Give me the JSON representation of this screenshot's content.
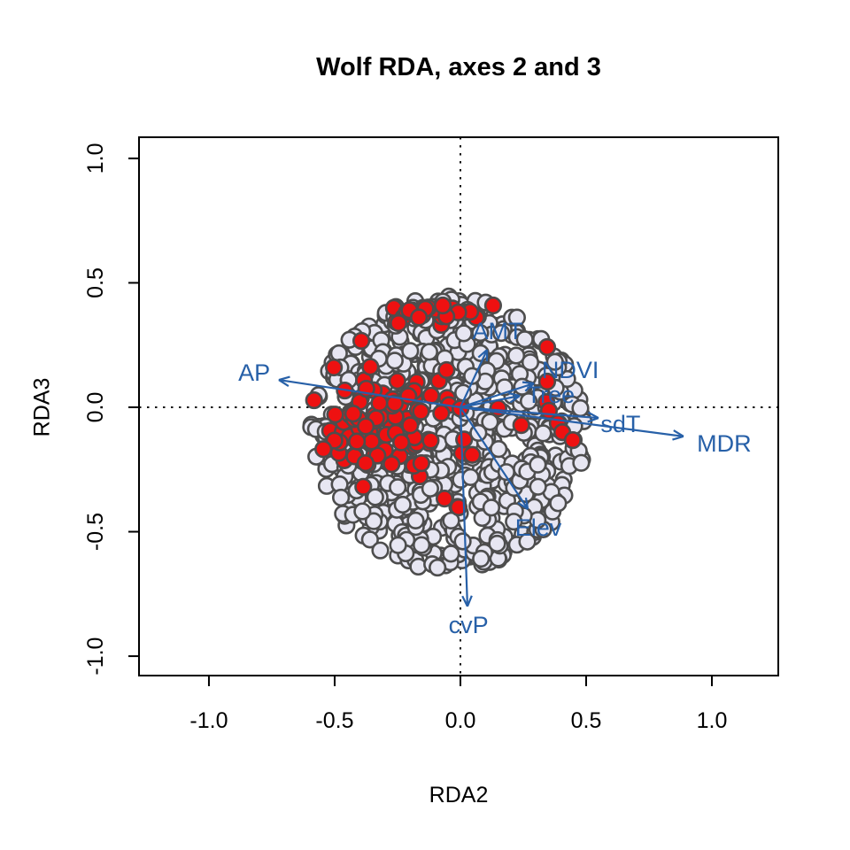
{
  "chart_data": {
    "type": "scatter",
    "subtype": "rda-biplot",
    "title": "Wolf RDA, axes 2 and 3",
    "xlabel": "RDA2",
    "ylabel": "RDA3",
    "xlim": [
      -1.278,
      1.264
    ],
    "ylim": [
      -1.078,
      1.085
    ],
    "x_ticks": [
      -1.0,
      -0.5,
      0.0,
      0.5,
      1.0
    ],
    "y_ticks": [
      -1.0,
      -0.5,
      0.0,
      0.5,
      1.0
    ],
    "x_tick_labels": [
      "-1.0",
      "-0.5",
      "0.0",
      "0.5",
      "1.0"
    ],
    "y_tick_labels": [
      "-1.0",
      "-0.5",
      "0.0",
      "0.5",
      "1.0"
    ],
    "grid": false,
    "legend": "none",
    "zero_reference_lines": {
      "style": "dotted",
      "color": "#111111",
      "at_x": 0,
      "at_y": 0
    },
    "colors": {
      "arrow": "#2760a8",
      "arrow_label": "#2760a8",
      "site_point_fill": "#e7e6f2",
      "highlight_point_fill": "#ee1111",
      "point_stroke": "#4d4d4d",
      "axis": "#000000"
    },
    "arrows": [
      {
        "label": "AP",
        "x": -0.722,
        "y": 0.11,
        "label_x": -0.82,
        "label_y": 0.139
      },
      {
        "label": "AMT",
        "x": 0.106,
        "y": 0.231,
        "label_x": 0.148,
        "label_y": 0.306
      },
      {
        "label": "NDVI",
        "x": 0.292,
        "y": 0.096,
        "label_x": 0.437,
        "label_y": 0.149
      },
      {
        "label": "Tree",
        "x": 0.236,
        "y": 0.046,
        "label_x": 0.359,
        "label_y": 0.05
      },
      {
        "label": "sdT",
        "x": 0.549,
        "y": -0.043,
        "label_x": 0.637,
        "label_y": -0.068
      },
      {
        "label": "MDR",
        "x": 0.887,
        "y": -0.117,
        "label_x": 1.049,
        "label_y": -0.146
      },
      {
        "label": "Elev",
        "x": 0.268,
        "y": -0.409,
        "label_x": 0.31,
        "label_y": -0.484
      },
      {
        "label": "cvP",
        "x": 0.028,
        "y": -0.8,
        "label_x": 0.032,
        "label_y": -0.875
      }
    ],
    "points": {
      "seed": 1337,
      "marker_radius_px": 8.8,
      "marker_stroke_px": 2.6,
      "base_cloud": {
        "n": 800,
        "cx": -0.05,
        "cy": -0.105,
        "rx": 0.545,
        "ry": 0.55
      },
      "red_clusters": [
        {
          "type": "gauss",
          "n": 78,
          "cx": -0.33,
          "cy": -0.09,
          "sx": 0.115,
          "sy": 0.09
        },
        {
          "type": "gauss",
          "n": 14,
          "cx": -0.13,
          "cy": -0.02,
          "sx": 0.1,
          "sy": 0.12
        },
        {
          "type": "band",
          "n": 22,
          "x_min": -0.27,
          "x_max": 0.1,
          "cy": 0.372,
          "sy": 0.018
        },
        {
          "type": "gauss",
          "n": 10,
          "cx": 0.0,
          "cy": -0.15,
          "sx": 0.18,
          "sy": 0.12
        }
      ],
      "red_points": [
        [
          -0.503,
          0.16
        ],
        [
          -0.394,
          0.267
        ],
        [
          0.13,
          0.409
        ],
        [
          -0.07,
          0.409
        ],
        [
          0.345,
          0.242
        ],
        [
          0.345,
          0.103
        ],
        [
          0.342,
          0.021
        ],
        [
          0.352,
          -0.014
        ],
        [
          0.387,
          -0.064
        ],
        [
          0.405,
          -0.1
        ],
        [
          0.447,
          -0.132
        ],
        [
          -0.063,
          -0.367
        ],
        [
          -0.007,
          -0.402
        ],
        [
          0.151,
          -0.004
        ],
        [
          -0.246,
          0.338
        ],
        [
          -0.165,
          0.361
        ]
      ]
    }
  }
}
